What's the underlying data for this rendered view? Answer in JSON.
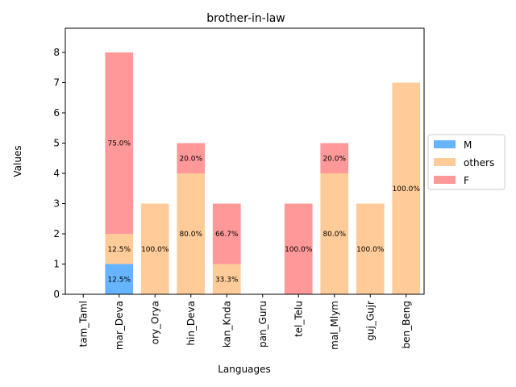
{
  "chart_data": {
    "type": "bar",
    "stacked": true,
    "title": "brother-in-law",
    "xlabel": "Languages",
    "ylabel": "Values",
    "ylim": [
      0,
      8.8
    ],
    "yticks": [
      0,
      1,
      2,
      3,
      4,
      5,
      6,
      7,
      8
    ],
    "categories": [
      "tam_Taml",
      "mar_Deva",
      "ory_Orya",
      "hin_Deva",
      "kan_Knda",
      "pan_Guru",
      "tel_Telu",
      "mal_Mlym",
      "guj_Gujr",
      "ben_Beng"
    ],
    "series": [
      {
        "name": "M",
        "color": "#66b3ff",
        "values": [
          0,
          1,
          0,
          0,
          0,
          0,
          0,
          0,
          0,
          0
        ],
        "labels": [
          "",
          "12.5%",
          "",
          "",
          "",
          "",
          "",
          "",
          "",
          ""
        ]
      },
      {
        "name": "others",
        "color": "#ffcc99",
        "values": [
          0,
          1,
          3,
          4,
          1,
          0,
          0,
          4,
          3,
          7
        ],
        "labels": [
          "",
          "12.5%",
          "100.0%",
          "80.0%",
          "33.3%",
          "",
          "",
          "80.0%",
          "100.0%",
          "100.0%"
        ]
      },
      {
        "name": "F",
        "color": "#ff9999",
        "values": [
          0,
          6,
          0,
          1,
          2,
          0,
          3,
          1,
          0,
          0
        ],
        "labels": [
          "",
          "75.0%",
          "",
          "20.0%",
          "66.7%",
          "",
          "100.0%",
          "20.0%",
          "",
          ""
        ]
      }
    ],
    "legend_position": "center-right",
    "grid": false
  }
}
